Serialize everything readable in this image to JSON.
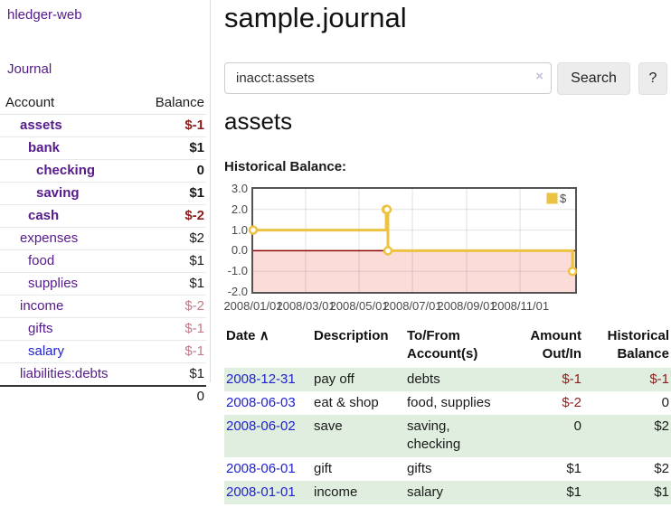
{
  "app": {
    "brand": "hledger-web"
  },
  "sidebar": {
    "journal_label": "Journal",
    "accounts": {
      "headers": {
        "account": "Account",
        "balance": "Balance"
      },
      "rows": [
        {
          "account": "assets",
          "level": 1,
          "bold": true,
          "color": "purple",
          "balance": "$-1",
          "balance_color": "neg"
        },
        {
          "account": "bank",
          "level": 2,
          "bold": true,
          "color": "purple",
          "balance": "$1",
          "balance_color": "normal"
        },
        {
          "account": "checking",
          "level": 3,
          "bold": true,
          "color": "purple",
          "balance": "0",
          "balance_color": "normal"
        },
        {
          "account": "saving",
          "level": 3,
          "bold": true,
          "color": "purple",
          "balance": "$1",
          "balance_color": "normal"
        },
        {
          "account": "cash",
          "level": 2,
          "bold": true,
          "color": "purple",
          "balance": "$-2",
          "balance_color": "neg"
        },
        {
          "account": "expenses",
          "level": 1,
          "bold": false,
          "color": "purple",
          "balance": "$2",
          "balance_color": "normal"
        },
        {
          "account": "food",
          "level": 2,
          "bold": false,
          "color": "purple",
          "balance": "$1",
          "balance_color": "normal"
        },
        {
          "account": "supplies",
          "level": 2,
          "bold": false,
          "color": "purple",
          "balance": "$1",
          "balance_color": "normal"
        },
        {
          "account": "income",
          "level": 1,
          "bold": false,
          "color": "purple",
          "balance": "$-2",
          "balance_color": "neg-faded"
        },
        {
          "account": "gifts",
          "level": 2,
          "bold": false,
          "color": "purple",
          "balance": "$-1",
          "balance_color": "neg-faded"
        },
        {
          "account": "salary",
          "level": 2,
          "bold": false,
          "color": "blue",
          "balance": "$-1",
          "balance_color": "neg-faded"
        },
        {
          "account": "liabilities:debts",
          "level": 1,
          "bold": false,
          "color": "purple",
          "balance": "$1",
          "balance_color": "normal"
        }
      ],
      "total": "0"
    }
  },
  "main": {
    "title": "sample.journal",
    "search": {
      "value": "inacct:assets",
      "clear_icon": "×",
      "search_button": "Search",
      "help_button": "?"
    },
    "account_heading": "assets",
    "chart_title": "Historical Balance:",
    "register": {
      "headers": [
        "Date",
        "Description",
        "To/From Account(s)",
        "Amount Out/In",
        "Historical Balance"
      ],
      "sort_indicator": "∧",
      "rows": [
        {
          "date": "2008-12-31",
          "description": "pay off",
          "accounts": "debts",
          "amount": "$-1",
          "amount_neg": true,
          "balance": "$-1",
          "balance_neg": true,
          "shaded": true
        },
        {
          "date": "2008-06-03",
          "description": "eat & shop",
          "accounts": "food, supplies",
          "amount": "$-2",
          "amount_neg": true,
          "balance": "0",
          "balance_neg": false,
          "shaded": false
        },
        {
          "date": "2008-06-02",
          "description": "save",
          "accounts": "saving, checking",
          "amount": "0",
          "amount_neg": false,
          "balance": "$2",
          "balance_neg": false,
          "shaded": true
        },
        {
          "date": "2008-06-01",
          "description": "gift",
          "accounts": "gifts",
          "amount": "$1",
          "amount_neg": false,
          "balance": "$2",
          "balance_neg": false,
          "shaded": false
        },
        {
          "date": "2008-01-01",
          "description": "income",
          "accounts": "salary",
          "amount": "$1",
          "amount_neg": false,
          "balance": "$1",
          "balance_neg": false,
          "shaded": true
        }
      ]
    }
  },
  "chart_data": {
    "type": "line",
    "step": true,
    "title": "Historical Balance",
    "x": [
      "2008-01-01",
      "2008-06-01",
      "2008-06-02",
      "2008-06-03",
      "2008-12-31"
    ],
    "series": [
      {
        "name": "$",
        "color": "#edc240",
        "values": [
          1,
          2,
          2,
          0,
          -1
        ]
      }
    ],
    "ylim": [
      -2,
      3
    ],
    "xlim": [
      "2008-01-01",
      "2009-01-03"
    ],
    "y_ticks": [
      "3.0",
      "2.0",
      "1.0",
      "0.0",
      "-1.0",
      "-2.0"
    ],
    "x_ticks": [
      "2008/01/01",
      "2008/03/01",
      "2008/05/01",
      "2008/07/01",
      "2008/09/01",
      "2008/11/01"
    ],
    "grid": true,
    "legend_position": "top-right",
    "negative_region": true,
    "negative_region_color": "#fcdcd9",
    "zero_line_color": "#8b0000"
  },
  "colors": {
    "link_purple": "#551a8b",
    "link_blue": "#2222cc",
    "negative": "#8b1d1d",
    "negative_faded": "#c07b87",
    "row_shade": "#dfeede",
    "series_gold": "#edc240"
  }
}
